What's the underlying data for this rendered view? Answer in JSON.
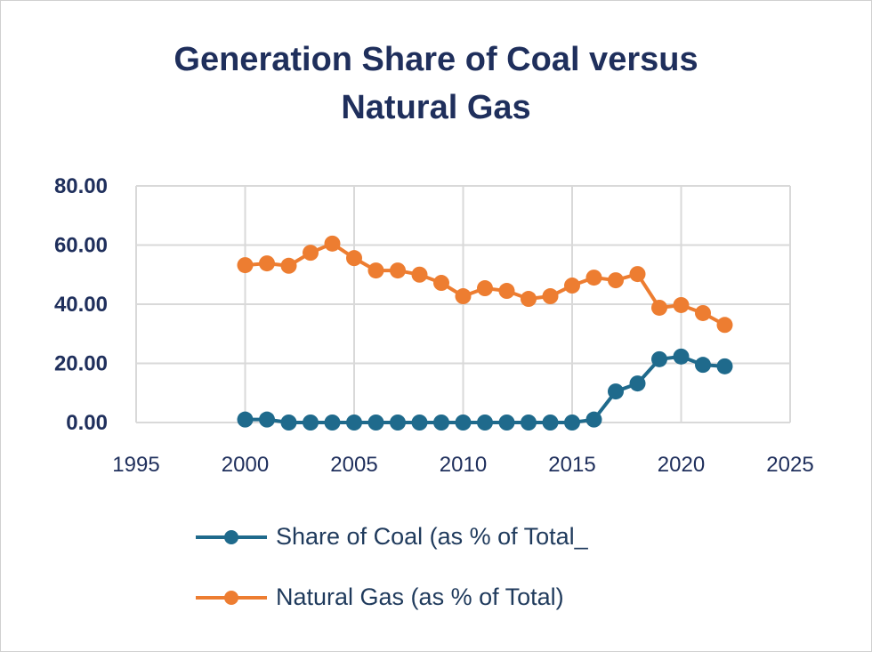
{
  "chart_data": {
    "type": "line",
    "title_lines": [
      "Generation Share of Coal versus",
      "Natural Gas"
    ],
    "xlabel": "",
    "ylabel": "",
    "xlim": [
      1995,
      2025
    ],
    "ylim": [
      0,
      80
    ],
    "x_ticks": [
      "1995",
      "2000",
      "2005",
      "2010",
      "2015",
      "2020",
      "2025"
    ],
    "y_ticks": [
      "0.00",
      "20.00",
      "40.00",
      "60.00",
      "80.00"
    ],
    "grid": true,
    "legend_position": "bottom",
    "x": [
      2000,
      2001,
      2002,
      2003,
      2004,
      2005,
      2006,
      2007,
      2008,
      2009,
      2010,
      2011,
      2012,
      2013,
      2014,
      2015,
      2016,
      2017,
      2018,
      2019,
      2020,
      2021,
      2022
    ],
    "series": [
      {
        "name": "Share of Coal (as % of Total_",
        "color": "#1f6a8c",
        "values": [
          1,
          1,
          0,
          0,
          0,
          0,
          0,
          0,
          0,
          0,
          0,
          0,
          0,
          0,
          0,
          0,
          1,
          10.5,
          13.2,
          21.4,
          22.3,
          19.5,
          19
        ]
      },
      {
        "name": "Natural Gas (as % of Total)",
        "color": "#ed7d31",
        "values": [
          53.2,
          53.8,
          53,
          57.4,
          60.5,
          55.6,
          51.4,
          51.4,
          50,
          47.2,
          42.7,
          45.4,
          44.5,
          41.8,
          42.7,
          46.3,
          49,
          48.1,
          50.2,
          38.8,
          39.7,
          37,
          33
        ]
      }
    ]
  }
}
